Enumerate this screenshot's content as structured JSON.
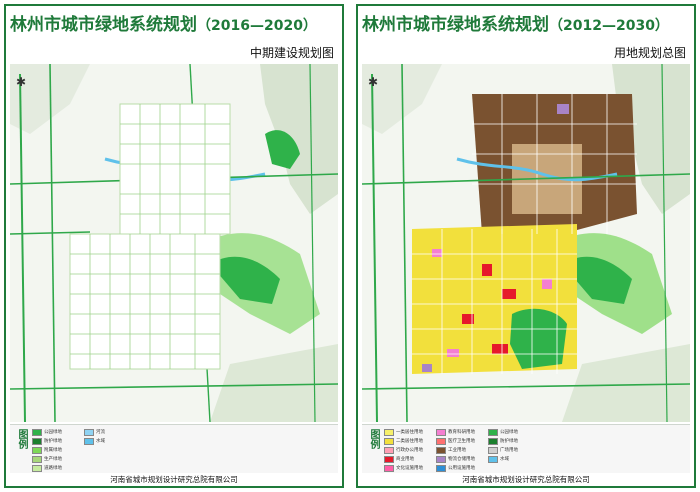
{
  "left": {
    "title": "林州市城市绿地系统规划",
    "years": "（2016—2020）",
    "subtitle": "中期建设规划图",
    "legend_head": "图例",
    "legend": [
      {
        "label": "公园绿地",
        "color": "#2fb24a"
      },
      {
        "label": "防护绿地",
        "color": "#1b7f2e"
      },
      {
        "label": "附属绿地",
        "color": "#7ed957"
      },
      {
        "label": "生产绿地",
        "color": "#a7d87a"
      },
      {
        "label": "道路绿地",
        "color": "#c6ec9f"
      },
      {
        "label": "河流",
        "color": "#8fd3f3"
      },
      {
        "label": "水域",
        "color": "#5fc1ea"
      }
    ],
    "footer": "河南省城市规划设计研究总院有限公司"
  },
  "right": {
    "title": "林州市城市绿地系统规划",
    "years": "（2012—2030）",
    "subtitle": "用地规划总图",
    "legend_head": "图例",
    "legend": [
      {
        "label": "一类居住用地",
        "color": "#f7f06a"
      },
      {
        "label": "二类居住用地",
        "color": "#f2e03c"
      },
      {
        "label": "行政办公用地",
        "color": "#ff9fb4"
      },
      {
        "label": "商业用地",
        "color": "#e6192b"
      },
      {
        "label": "文化设施用地",
        "color": "#ff5fa7"
      },
      {
        "label": "教育科研用地",
        "color": "#f47fd1"
      },
      {
        "label": "医疗卫生用地",
        "color": "#ff7070"
      },
      {
        "label": "工业用地",
        "color": "#7a5230"
      },
      {
        "label": "物流仓储用地",
        "color": "#a884c7"
      },
      {
        "label": "公用设施用地",
        "color": "#2d8fd6"
      },
      {
        "label": "公园绿地",
        "color": "#2fb24a"
      },
      {
        "label": "防护绿地",
        "color": "#1b7f2e"
      },
      {
        "label": "广场用地",
        "color": "#cfcfcf"
      },
      {
        "label": "水域",
        "color": "#5fc1ea"
      }
    ],
    "footer": "河南省城市规划设计研究总院有限公司"
  }
}
